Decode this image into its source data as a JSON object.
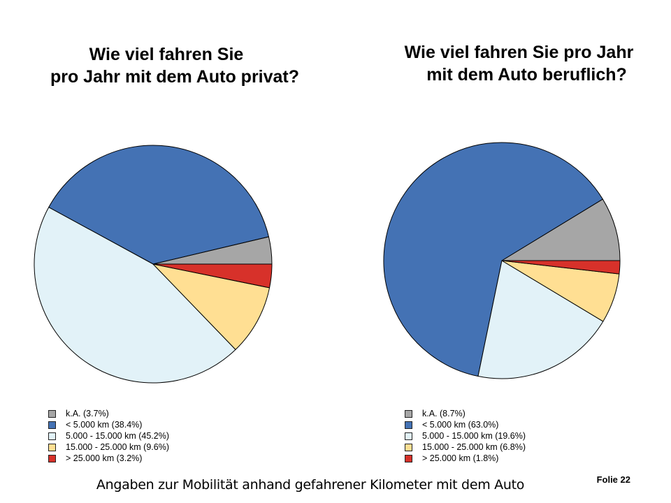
{
  "slide": {
    "caption": "Angaben zur Mobilität anhand gefahrener Kilometer mit dem Auto",
    "number_label": "Folie 22"
  },
  "chart_data": [
    {
      "type": "pie",
      "title_lines": [
        "Wie viel fahren Sie",
        "pro Jahr mit dem Auto privat?"
      ],
      "slices": [
        {
          "label": "k.A. (3.7%)",
          "value": 3.7,
          "color": "#a6a6a6"
        },
        {
          "label": "< 5.000 km (38.4%)",
          "value": 38.4,
          "color": "#4472b4"
        },
        {
          "label": "5.000 - 15.000 km (45.2%)",
          "value": 45.2,
          "color": "#e2f2f8"
        },
        {
          "label": "15.000 - 25.000 km (9.6%)",
          "value": 9.6,
          "color": "#ffdf93"
        },
        {
          "label": "> 25.000 km (3.2%)",
          "value": 3.2,
          "color": "#d7312a"
        }
      ],
      "legend_position": "bottom"
    },
    {
      "type": "pie",
      "title_lines": [
        "Wie viel fahren Sie pro Jahr",
        "mit dem Auto beruflich?"
      ],
      "slices": [
        {
          "label": "k.A. (8.7%)",
          "value": 8.7,
          "color": "#a6a6a6"
        },
        {
          "label": "< 5.000 km (63.0%)",
          "value": 63.0,
          "color": "#4472b4"
        },
        {
          "label": "5.000 - 15.000 km (19.6%)",
          "value": 19.6,
          "color": "#e2f2f8"
        },
        {
          "label": "15.000 - 25.000 km (6.8%)",
          "value": 6.8,
          "color": "#ffdf93"
        },
        {
          "label": "> 25.000 km (1.8%)",
          "value": 1.8,
          "color": "#d7312a"
        }
      ],
      "legend_position": "bottom"
    }
  ]
}
